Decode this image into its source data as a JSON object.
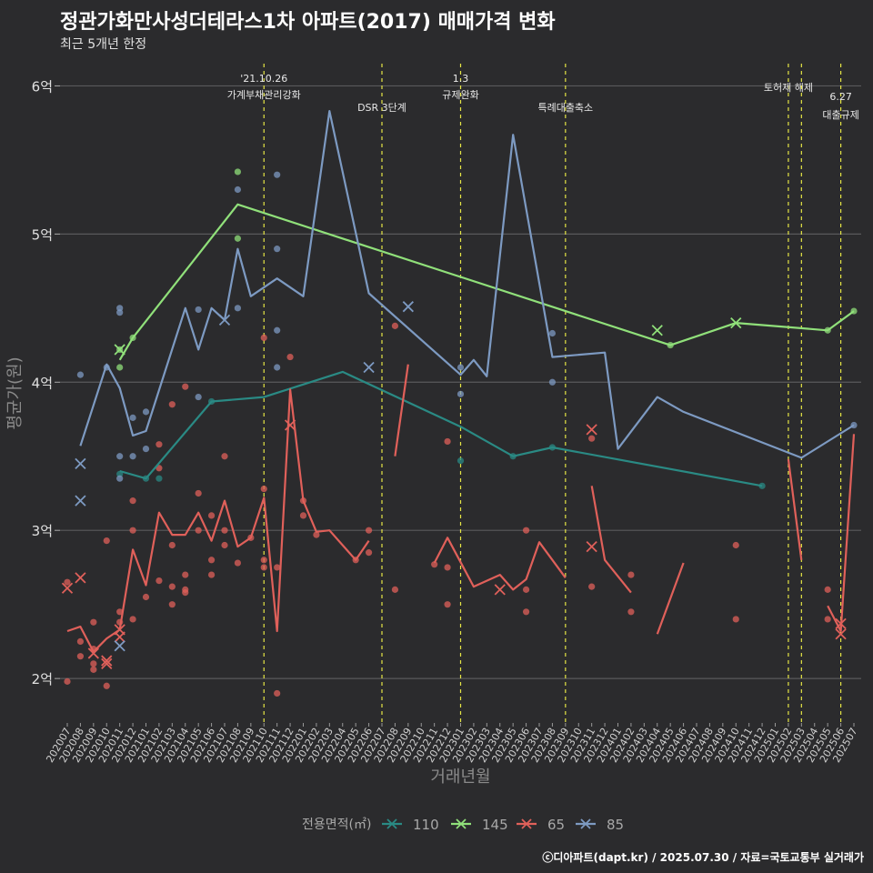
{
  "title": "정관가화만사성더테라스1차 아파트(2017) 매매가격 변화",
  "subtitle": "최근 5개년 한정",
  "caption": "ⓒ디아파트(dapt.kr) / 2025.07.30 / 자료=국토교통부 실거래가",
  "chart_data": {
    "type": "line",
    "xlabel": "거래년월",
    "ylabel": "평균가(원)",
    "ylim": [
      1.7,
      6.15
    ],
    "yticks": [
      2,
      3,
      4,
      5,
      6
    ],
    "ytick_labels": [
      "2억",
      "3억",
      "4억",
      "5억",
      "6억"
    ],
    "categories": [
      "202007",
      "202008",
      "202009",
      "202010",
      "202011",
      "202012",
      "202101",
      "202102",
      "202103",
      "202104",
      "202105",
      "202106",
      "202107",
      "202108",
      "202109",
      "202110",
      "202111",
      "202112",
      "202201",
      "202202",
      "202203",
      "202204",
      "202205",
      "202206",
      "202207",
      "202208",
      "202209",
      "202210",
      "202211",
      "202212",
      "202301",
      "202302",
      "202303",
      "202304",
      "202305",
      "202306",
      "202307",
      "202308",
      "202309",
      "202310",
      "202311",
      "202312",
      "202401",
      "202402",
      "202403",
      "202404",
      "202405",
      "202406",
      "202407",
      "202408",
      "202409",
      "202410",
      "202411",
      "202412",
      "202501",
      "202502",
      "202503",
      "202504",
      "202505",
      "202506",
      "202507"
    ],
    "legend": {
      "title": "전용면적(㎡)",
      "position": "bottom",
      "entries": [
        {
          "name": "110",
          "color": "#2a8a84"
        },
        {
          "name": "145",
          "color": "#90e07a"
        },
        {
          "name": "65",
          "color": "#e0605a"
        },
        {
          "name": "85",
          "color": "#7d9ac2"
        }
      ]
    },
    "events": [
      {
        "x": "202110",
        "label1": "'21.10.26",
        "label2": "가계부채관리강화"
      },
      {
        "x": "202207",
        "label1": "",
        "label2": "DSR 3단계"
      },
      {
        "x": "202301",
        "label1": "1.3",
        "label2": "규제완화"
      },
      {
        "x": "202309",
        "label1": "",
        "label2": "특례대출축소"
      },
      {
        "x": "202502",
        "label1": "토허제 해제",
        "label2": ""
      },
      {
        "x": "202503",
        "label1": "",
        "label2": ""
      },
      {
        "x": "202506",
        "label1": "6.27",
        "label2": "대출규제"
      }
    ],
    "series": [
      {
        "name": "110",
        "color": "#2a8a84",
        "line": [
          [
            "202011",
            3.4
          ],
          [
            "202101",
            3.35
          ],
          [
            "202106",
            3.87
          ],
          [
            "202110",
            3.9
          ],
          [
            "202204",
            4.07
          ],
          [
            "202301",
            3.7
          ],
          [
            "202305",
            3.5
          ],
          [
            "202308",
            3.56
          ],
          [
            "202412",
            3.3
          ]
        ],
        "points": [
          [
            "202011",
            3.38
          ],
          [
            "202101",
            3.35
          ],
          [
            "202102",
            3.35
          ],
          [
            "202106",
            3.87
          ],
          [
            "202301",
            3.47
          ],
          [
            "202305",
            3.5
          ],
          [
            "202308",
            3.56
          ],
          [
            "202412",
            3.3
          ]
        ],
        "crosses": []
      },
      {
        "name": "145",
        "color": "#90e07a",
        "line": [
          [
            "202011",
            4.15
          ],
          [
            "202012",
            4.3
          ],
          [
            "202108",
            5.2
          ],
          [
            "202405",
            4.25
          ],
          [
            "202410",
            4.4
          ],
          [
            "202505",
            4.35
          ],
          [
            "202507",
            4.48
          ]
        ],
        "points": [
          [
            "202011",
            4.22
          ],
          [
            "202011",
            4.1
          ],
          [
            "202012",
            4.3
          ],
          [
            "202108",
            5.42
          ],
          [
            "202108",
            4.97
          ],
          [
            "202405",
            4.25
          ],
          [
            "202505",
            4.35
          ],
          [
            "202507",
            4.48
          ]
        ],
        "crosses": [
          [
            "202011",
            4.22
          ],
          [
            "202404",
            4.35
          ],
          [
            "202410",
            4.4
          ]
        ]
      },
      {
        "name": "65",
        "color": "#e0605a",
        "line": [
          [
            [
              "202007",
              2.32
            ],
            [
              "202008",
              2.35
            ],
            [
              "202009",
              2.18
            ],
            [
              "202010",
              2.27
            ],
            [
              "202011",
              2.33
            ],
            [
              "202012",
              2.87
            ],
            [
              "202101",
              2.63
            ],
            [
              "202102",
              3.12
            ],
            [
              "202103",
              2.97
            ],
            [
              "202104",
              2.97
            ],
            [
              "202105",
              3.12
            ],
            [
              "202106",
              2.93
            ],
            [
              "202107",
              3.2
            ],
            [
              "202108",
              2.89
            ],
            [
              "202109",
              2.95
            ],
            [
              "202110",
              3.22
            ],
            [
              "202111",
              2.32
            ],
            [
              "202112",
              3.95
            ],
            [
              "202201",
              3.2
            ],
            [
              "202202",
              2.99
            ],
            [
              "202203",
              3.0
            ],
            [
              "202205",
              2.8
            ],
            [
              "202206",
              2.93
            ]
          ],
          [
            [
              "202208",
              3.5
            ],
            [
              "202209",
              4.12
            ]
          ],
          [
            [
              "202211",
              2.78
            ],
            [
              "202212",
              2.95
            ],
            [
              "202302",
              2.62
            ],
            [
              "202304",
              2.7
            ],
            [
              "202305",
              2.6
            ],
            [
              "202306",
              2.67
            ],
            [
              "202307",
              2.92
            ],
            [
              "202309",
              2.68
            ]
          ],
          [
            [
              "202311",
              3.3
            ],
            [
              "202312",
              2.8
            ],
            [
              "202402",
              2.58
            ]
          ],
          [
            [
              "202404",
              2.3
            ],
            [
              "202406",
              2.78
            ]
          ],
          [
            [
              "202502",
              3.48
            ],
            [
              "202503",
              2.8
            ]
          ],
          [
            [
              "202505",
              2.49
            ],
            [
              "202506",
              2.32
            ],
            [
              "202507",
              3.65
            ]
          ]
        ],
        "points": [
          [
            "202007",
            2.65
          ],
          [
            "202007",
            1.98
          ],
          [
            "202008",
            2.25
          ],
          [
            "202008",
            2.15
          ],
          [
            "202009",
            2.38
          ],
          [
            "202009",
            2.2
          ],
          [
            "202009",
            2.1
          ],
          [
            "202009",
            2.06
          ],
          [
            "202010",
            2.93
          ],
          [
            "202010",
            1.95
          ],
          [
            "202011",
            2.45
          ],
          [
            "202011",
            2.38
          ],
          [
            "202012",
            3.2
          ],
          [
            "202012",
            3.0
          ],
          [
            "202012",
            2.4
          ],
          [
            "202101",
            2.55
          ],
          [
            "202102",
            3.58
          ],
          [
            "202102",
            3.42
          ],
          [
            "202102",
            2.66
          ],
          [
            "202103",
            3.85
          ],
          [
            "202103",
            2.9
          ],
          [
            "202103",
            2.62
          ],
          [
            "202103",
            2.5
          ],
          [
            "202104",
            3.97
          ],
          [
            "202104",
            2.7
          ],
          [
            "202104",
            2.6
          ],
          [
            "202104",
            2.58
          ],
          [
            "202105",
            3.25
          ],
          [
            "202105",
            3.0
          ],
          [
            "202106",
            3.1
          ],
          [
            "202106",
            2.8
          ],
          [
            "202106",
            2.7
          ],
          [
            "202107",
            3.5
          ],
          [
            "202107",
            3.0
          ],
          [
            "202107",
            2.9
          ],
          [
            "202108",
            2.78
          ],
          [
            "202109",
            2.95
          ],
          [
            "202110",
            4.3
          ],
          [
            "202110",
            3.28
          ],
          [
            "202110",
            2.8
          ],
          [
            "202110",
            2.75
          ],
          [
            "202111",
            2.75
          ],
          [
            "202111",
            1.9
          ],
          [
            "202112",
            4.17
          ],
          [
            "202201",
            3.2
          ],
          [
            "202201",
            3.1
          ],
          [
            "202202",
            2.97
          ],
          [
            "202205",
            2.8
          ],
          [
            "202206",
            3.0
          ],
          [
            "202206",
            2.85
          ],
          [
            "202208",
            4.38
          ],
          [
            "202208",
            2.6
          ],
          [
            "202211",
            2.77
          ],
          [
            "202212",
            3.6
          ],
          [
            "202212",
            2.75
          ],
          [
            "202212",
            2.5
          ],
          [
            "202306",
            3.0
          ],
          [
            "202306",
            2.6
          ],
          [
            "202306",
            2.45
          ],
          [
            "202311",
            3.62
          ],
          [
            "202311",
            2.62
          ],
          [
            "202402",
            2.7
          ],
          [
            "202402",
            2.45
          ],
          [
            "202410",
            2.9
          ],
          [
            "202410",
            2.4
          ],
          [
            "202505",
            2.6
          ],
          [
            "202505",
            2.4
          ]
        ],
        "crosses": [
          [
            "202007",
            2.61
          ],
          [
            "202008",
            2.68
          ],
          [
            "202009",
            2.17
          ],
          [
            "202010",
            2.1
          ],
          [
            "202010",
            2.12
          ],
          [
            "202011",
            2.33
          ],
          [
            "202011",
            2.28
          ],
          [
            "202112",
            3.71
          ],
          [
            "202304",
            2.6
          ],
          [
            "202311",
            3.68
          ],
          [
            "202311",
            2.89
          ],
          [
            "202506",
            2.37
          ],
          [
            "202506",
            2.3
          ]
        ]
      },
      {
        "name": "85",
        "color": "#7d9ac2",
        "line": [
          [
            "202008",
            3.57
          ],
          [
            "202010",
            4.12
          ],
          [
            "202011",
            3.96
          ],
          [
            "202012",
            3.64
          ],
          [
            "202101",
            3.67
          ],
          [
            "202104",
            4.5
          ],
          [
            "202105",
            4.22
          ],
          [
            "202106",
            4.5
          ],
          [
            "202107",
            4.42
          ],
          [
            "202108",
            4.9
          ],
          [
            "202109",
            4.58
          ],
          [
            "202111",
            4.7
          ],
          [
            "202201",
            4.58
          ],
          [
            "202203",
            5.83
          ],
          [
            "202206",
            4.6
          ],
          [
            "202301",
            4.05
          ],
          [
            "202302",
            4.15
          ],
          [
            "202303",
            4.04
          ],
          [
            "202305",
            5.67
          ],
          [
            "202308",
            4.17
          ],
          [
            "202312",
            4.2
          ],
          [
            "202401",
            3.55
          ],
          [
            "202404",
            3.9
          ],
          [
            "202406",
            3.8
          ],
          [
            "202503",
            3.49
          ],
          [
            "202507",
            3.71
          ]
        ],
        "points": [
          [
            "202008",
            4.05
          ],
          [
            "202010",
            4.1
          ],
          [
            "202011",
            4.5
          ],
          [
            "202011",
            4.47
          ],
          [
            "202011",
            3.5
          ],
          [
            "202011",
            3.35
          ],
          [
            "202012",
            3.76
          ],
          [
            "202012",
            3.5
          ],
          [
            "202101",
            3.8
          ],
          [
            "202101",
            3.55
          ],
          [
            "202105",
            4.49
          ],
          [
            "202105",
            3.9
          ],
          [
            "202108",
            5.3
          ],
          [
            "202108",
            4.5
          ],
          [
            "202111",
            5.4
          ],
          [
            "202111",
            4.9
          ],
          [
            "202111",
            4.35
          ],
          [
            "202111",
            4.1
          ],
          [
            "202301",
            4.1
          ],
          [
            "202301",
            3.92
          ],
          [
            "202308",
            4.33
          ],
          [
            "202308",
            4.0
          ],
          [
            "202507",
            3.71
          ]
        ],
        "crosses": [
          [
            "202008",
            3.45
          ],
          [
            "202008",
            3.2
          ],
          [
            "202011",
            2.22
          ],
          [
            "202107",
            4.42
          ],
          [
            "202206",
            4.1
          ],
          [
            "202209",
            4.51
          ]
        ]
      }
    ]
  }
}
